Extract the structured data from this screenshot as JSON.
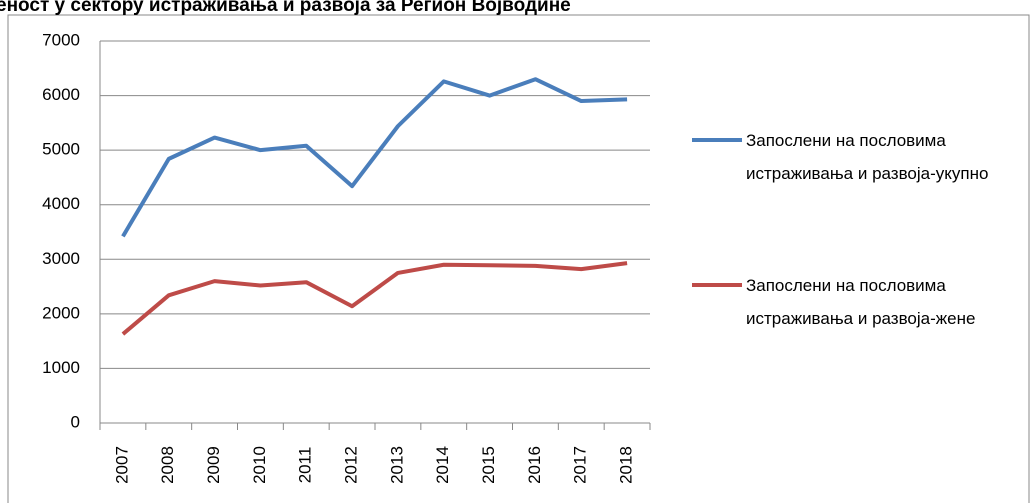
{
  "chart_data": {
    "type": "line",
    "title": "еност у сектору истраживања и развоја за Регион Војводине",
    "categories": [
      "2007",
      "2008",
      "2009",
      "2010",
      "2011",
      "2012",
      "2013",
      "2014",
      "2015",
      "2016",
      "2017",
      "2018"
    ],
    "series": [
      {
        "name": "Запослени на пословима истраживања и развоја-укупно",
        "color": "#4a7ebb",
        "values": [
          3420,
          4840,
          5230,
          5000,
          5080,
          4340,
          5440,
          6260,
          6000,
          6300,
          5900,
          5930
        ]
      },
      {
        "name": "Запослени на пословима истраживања и развоја-жене",
        "color": "#be4b48",
        "values": [
          1630,
          2340,
          2600,
          2520,
          2580,
          2140,
          2750,
          2900,
          2890,
          2880,
          2820,
          2930
        ]
      }
    ],
    "ylim": [
      0,
      7000
    ],
    "yticks": [
      0,
      1000,
      2000,
      3000,
      4000,
      5000,
      6000,
      7000
    ],
    "grid": true,
    "legend": "right"
  }
}
